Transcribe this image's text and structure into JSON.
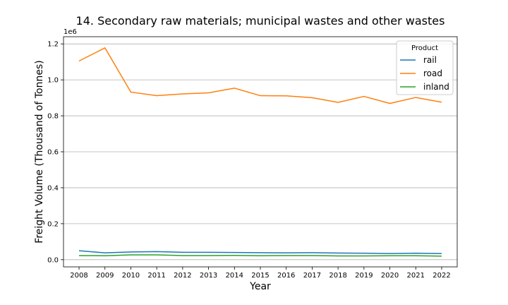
{
  "chart_data": {
    "type": "line",
    "title": "14. Secondary raw materials; municipal wastes and other wastes",
    "xlabel": "Year",
    "ylabel": "Freight Volume (Thousand of Tonnes)",
    "y_offset_label": "1e6",
    "x": [
      2008,
      2009,
      2010,
      2011,
      2012,
      2013,
      2014,
      2015,
      2016,
      2017,
      2018,
      2019,
      2020,
      2021,
      2022
    ],
    "ylim": [
      -0.04,
      1.24
    ],
    "yticks": [
      0.0,
      0.2,
      0.4,
      0.6,
      0.8,
      1.0,
      1.2
    ],
    "ytick_labels": [
      "0.0",
      "0.2",
      "0.4",
      "0.6",
      "0.8",
      "1.0",
      "1.2"
    ],
    "grid": "y",
    "legend": {
      "title": "Product",
      "placement": "top-right"
    },
    "series": [
      {
        "name": "rail",
        "color": "#1f77b4",
        "values": [
          0.05,
          0.038,
          0.043,
          0.045,
          0.041,
          0.041,
          0.04,
          0.039,
          0.038,
          0.039,
          0.037,
          0.036,
          0.034,
          0.036,
          0.034
        ]
      },
      {
        "name": "road",
        "color": "#ff7f0e",
        "values": [
          1.105,
          1.178,
          0.932,
          0.912,
          0.922,
          0.928,
          0.954,
          0.912,
          0.911,
          0.901,
          0.875,
          0.908,
          0.869,
          0.902,
          0.876
        ]
      },
      {
        "name": "inland",
        "color": "#2ca02c",
        "values": [
          0.023,
          0.022,
          0.027,
          0.027,
          0.023,
          0.023,
          0.024,
          0.022,
          0.023,
          0.023,
          0.021,
          0.021,
          0.022,
          0.022,
          0.02
        ]
      }
    ]
  }
}
